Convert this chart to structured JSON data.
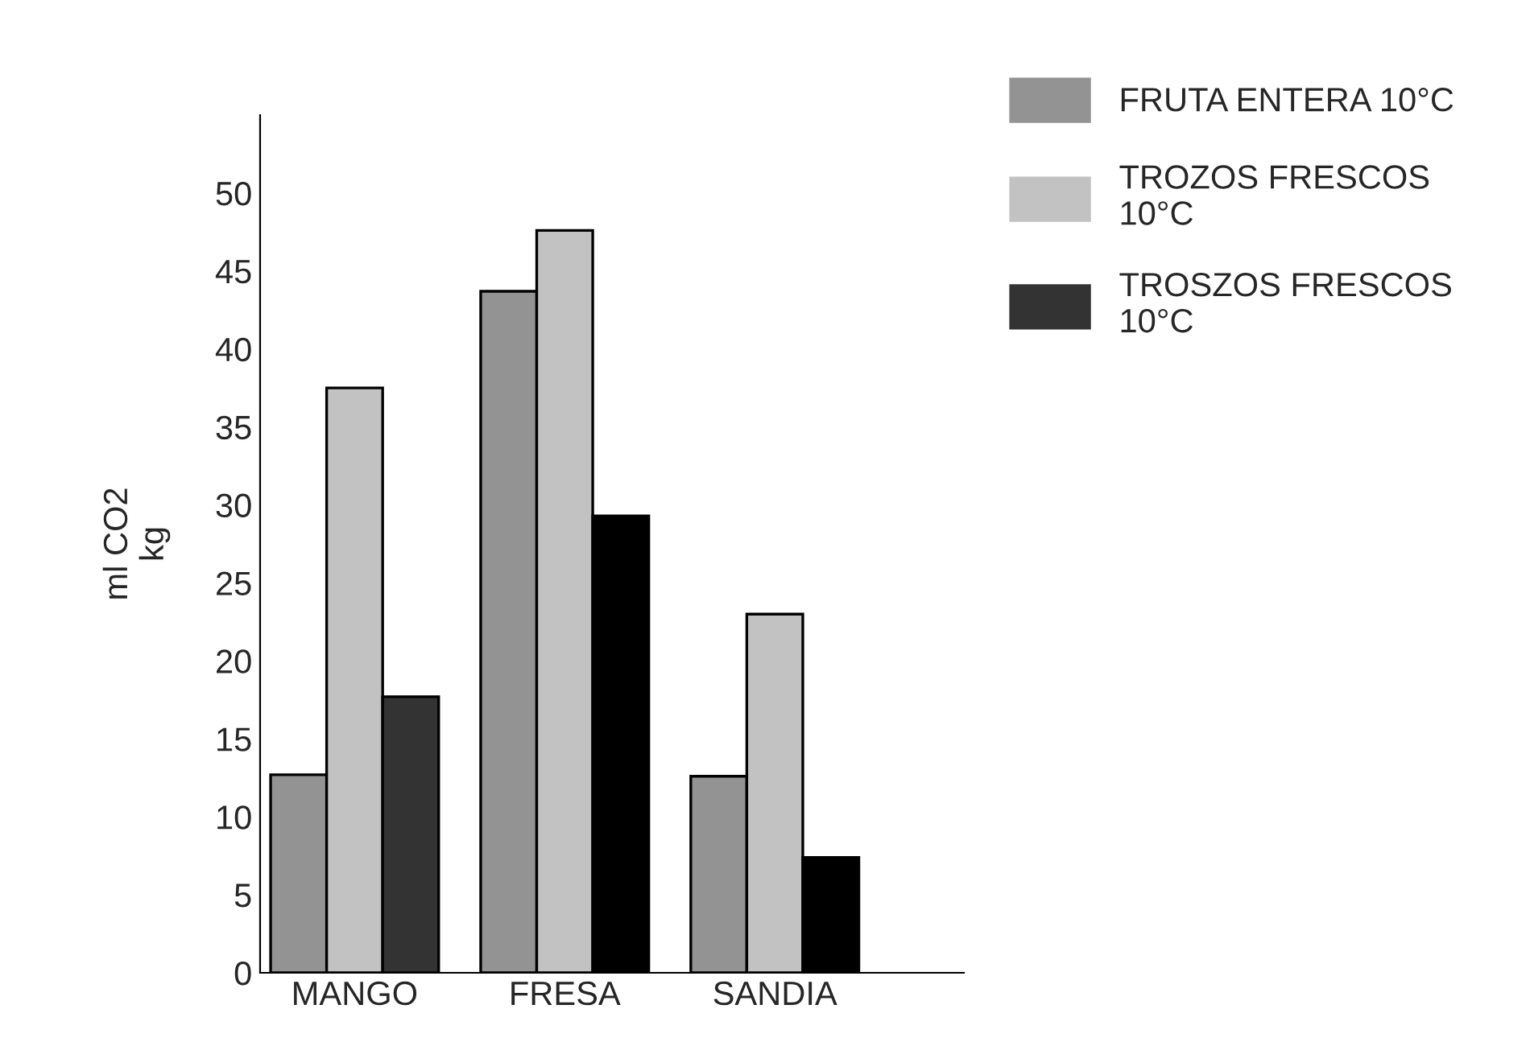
{
  "chart_data": {
    "type": "bar",
    "ylabel": "ml CO2\nkg",
    "categories": [
      "MANGO",
      "FRESA",
      "SANDIA"
    ],
    "series": [
      {
        "name": "FRUTA ENTERA 10°C",
        "color": "#939393",
        "values": [
          12.7,
          43.7,
          12.6
        ]
      },
      {
        "name": "TROZOS FRESCOS\n10°C",
        "color": "#c2c2c2",
        "values": [
          37.5,
          47.6,
          23
        ]
      },
      {
        "name": "TROSZOS FRESCOS\n10°C",
        "color": "#333333",
        "colors": [
          "#333333",
          "#000000",
          "#000000"
        ],
        "values": [
          17.7,
          29.3,
          7.4
        ]
      }
    ],
    "ylim": [
      0,
      55
    ],
    "yticks": [
      0,
      5,
      10,
      15,
      20,
      25,
      30,
      35,
      40,
      45,
      50
    ],
    "grid": false,
    "legend": "top right"
  }
}
